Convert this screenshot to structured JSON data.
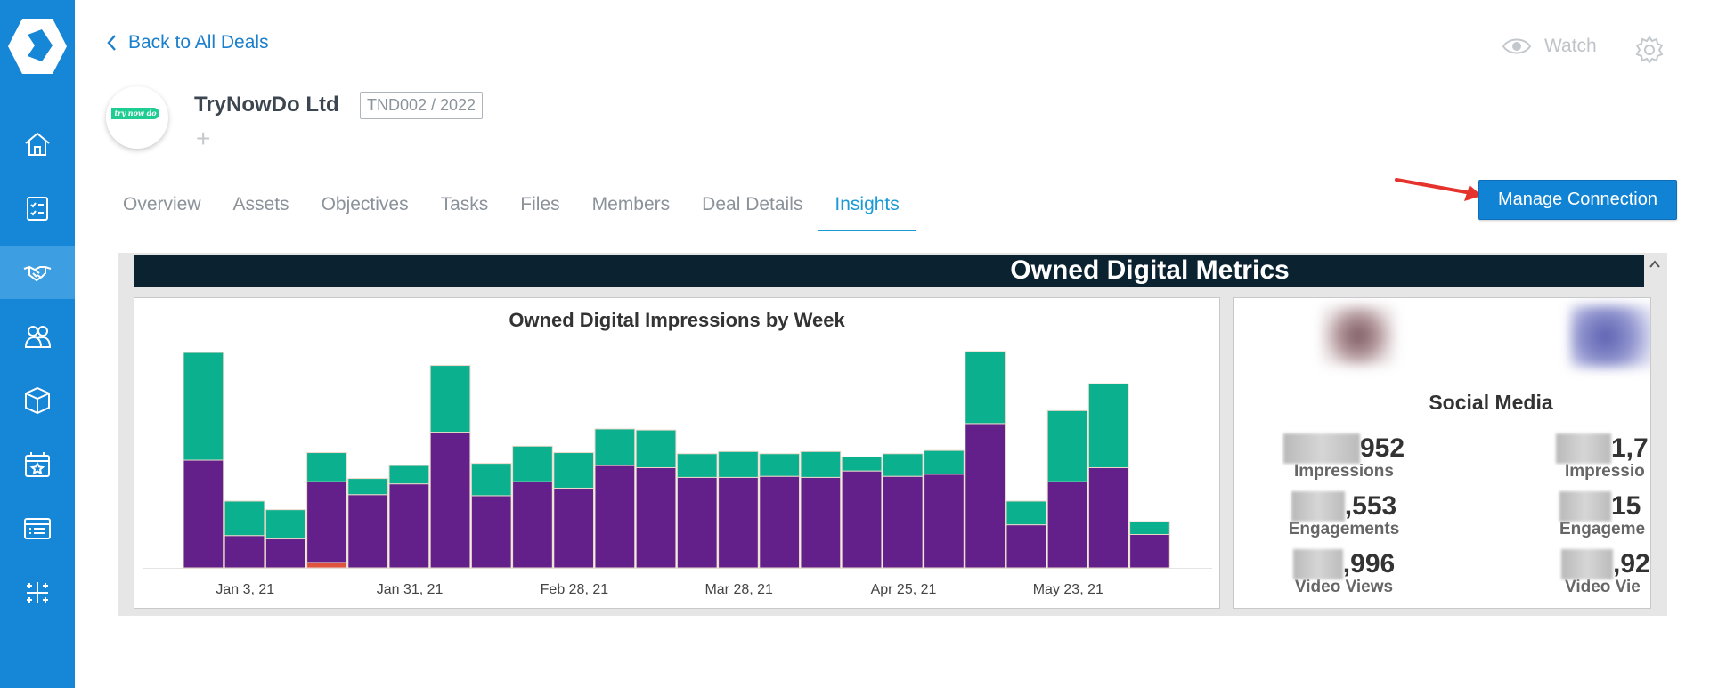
{
  "nav": {
    "back_label": "Back to All Deals"
  },
  "header": {
    "watch_label": "Watch",
    "company_name": "TryNowDo Ltd",
    "deal_code": "TND002 / 2022",
    "logo_text": "try now do",
    "add_symbol": "+"
  },
  "tabs": [
    {
      "label": "Overview"
    },
    {
      "label": "Assets"
    },
    {
      "label": "Objectives"
    },
    {
      "label": "Tasks"
    },
    {
      "label": "Files"
    },
    {
      "label": "Members"
    },
    {
      "label": "Deal Details"
    },
    {
      "label": "Insights",
      "active": true
    }
  ],
  "actions": {
    "manage_connection_label": "Manage Connection"
  },
  "dashboard": {
    "title": "Owned Digital Metrics",
    "social": {
      "title": "Social Media",
      "metrics": [
        {
          "value_suffix": "952",
          "label": "Impressions"
        },
        {
          "value_suffix": ",553",
          "label": "Engagements"
        },
        {
          "value_suffix": ",996",
          "label": "Video Views"
        },
        {
          "value_suffix": "1,7",
          "label": "Impressio"
        },
        {
          "value_suffix": "15",
          "label": "Engageme"
        },
        {
          "value_suffix": ",92",
          "label": "Video Vie"
        }
      ]
    }
  },
  "colors": {
    "sidebar": "#1686d6",
    "accent": "#1a9ad6",
    "bar_purple": "#64208a",
    "bar_teal": "#0bb18f",
    "bar_red": "#e0543f",
    "dash_title_bg": "#0b2230"
  },
  "icons": [
    "home-icon",
    "checklist-icon",
    "handshake-icon",
    "people-icon",
    "box-icon",
    "calendar-star-icon",
    "browser-list-icon",
    "sparkles-icon",
    "eye-icon",
    "gear-icon",
    "chevron-left-icon",
    "chevron-up-icon"
  ],
  "chart_data": {
    "type": "bar",
    "title": "Owned Digital Impressions by Week",
    "stacked": true,
    "x_tick_labels": [
      "Jan 3, 21",
      "Jan 31, 21",
      "Feb 28, 21",
      "Mar 28, 21",
      "Apr 25, 21",
      "May 23, 21"
    ],
    "ylim": [
      0,
      205
    ],
    "grid": false,
    "legend": "none",
    "series": [
      {
        "color": "#e0543f",
        "values": [
          0,
          0,
          0,
          5,
          0,
          0,
          0,
          0,
          0,
          0,
          0,
          0,
          0,
          0,
          0,
          0,
          0,
          0,
          0,
          0,
          0,
          0,
          0,
          0,
          0
        ]
      },
      {
        "color": "#64208a",
        "values": [
          100,
          30,
          27,
          75,
          68,
          78,
          126,
          67,
          80,
          74,
          95,
          93,
          84,
          84,
          85,
          84,
          90,
          85,
          87,
          134,
          40,
          80,
          93,
          31,
          0
        ]
      },
      {
        "color": "#0bb18f",
        "values": [
          100,
          32,
          27,
          27,
          15,
          17,
          62,
          30,
          33,
          33,
          34,
          35,
          22,
          24,
          21,
          24,
          13,
          21,
          22,
          67,
          22,
          66,
          78,
          12,
          0
        ]
      }
    ]
  }
}
